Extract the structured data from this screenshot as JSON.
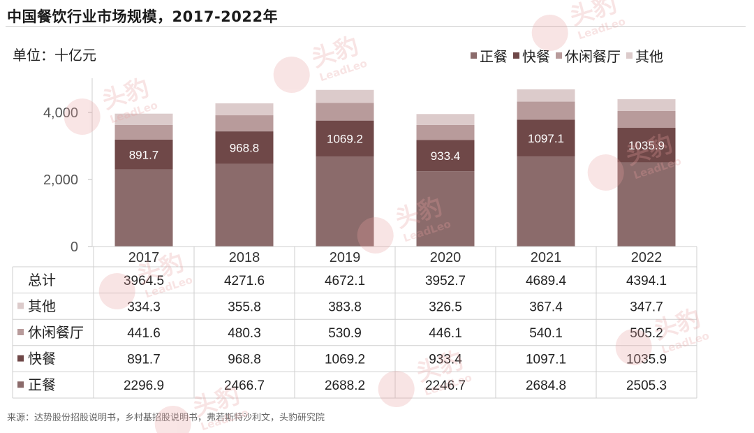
{
  "header": {
    "title": "中国餐饮行业市场规模，2017-2022年",
    "unit": "单位：十亿元"
  },
  "source": "来源：达势股份招股说明书，乡村基招股说明书，弗若斯特沙利文，头豹研究院",
  "watermark": {
    "text_cn": "头豹",
    "text_en": "LeadLeo"
  },
  "colors": {
    "正餐": "#8b6b6b",
    "快餐": "#6f4848",
    "休闲餐厅": "#b89b9b",
    "其他": "#dccbcb",
    "grid": "#cfcfcf",
    "watermark": "#e8a0a0"
  },
  "chart_data": {
    "type": "bar",
    "stacked": true,
    "title": "中国餐饮行业市场规模，2017-2022年",
    "ylabel": "单位：十亿元",
    "categories": [
      "2017",
      "2018",
      "2019",
      "2020",
      "2021",
      "2022"
    ],
    "ylim": [
      0,
      5000
    ],
    "yticks": [
      0,
      2000,
      4000
    ],
    "ytick_labels": [
      "0",
      "2,000",
      "4,000"
    ],
    "legend_position": "top-right",
    "series": [
      {
        "name": "正餐",
        "values": [
          2296.9,
          2466.7,
          2688.2,
          2246.7,
          2684.8,
          2505.3
        ]
      },
      {
        "name": "快餐",
        "values": [
          891.7,
          968.8,
          1069.2,
          933.4,
          1097.1,
          1035.9
        ],
        "data_labels": [
          "891.7",
          "968.8",
          "1069.2",
          "933.4",
          "1097.1",
          "1035.9"
        ]
      },
      {
        "name": "休闲餐厅",
        "values": [
          441.6,
          480.3,
          530.9,
          446.1,
          540.1,
          505.2
        ]
      },
      {
        "name": "其他",
        "values": [
          334.3,
          355.8,
          383.8,
          326.5,
          367.4,
          347.7
        ]
      }
    ],
    "table": {
      "rows": [
        {
          "label": "总计",
          "marker": null,
          "values": [
            "3964.5",
            "4271.6",
            "4672.1",
            "3952.7",
            "4689.4",
            "4394.1"
          ]
        },
        {
          "label": "其他",
          "marker": "其他",
          "values": [
            "334.3",
            "355.8",
            "383.8",
            "326.5",
            "367.4",
            "347.7"
          ]
        },
        {
          "label": "休闲餐厅",
          "marker": "休闲餐厅",
          "values": [
            "441.6",
            "480.3",
            "530.9",
            "446.1",
            "540.1",
            "505.2"
          ]
        },
        {
          "label": "快餐",
          "marker": "快餐",
          "values": [
            "891.7",
            "968.8",
            "1069.2",
            "933.4",
            "1097.1",
            "1035.9"
          ]
        },
        {
          "label": "正餐",
          "marker": "正餐",
          "values": [
            "2296.9",
            "2466.7",
            "2688.2",
            "2246.7",
            "2684.8",
            "2505.3"
          ]
        }
      ]
    }
  }
}
